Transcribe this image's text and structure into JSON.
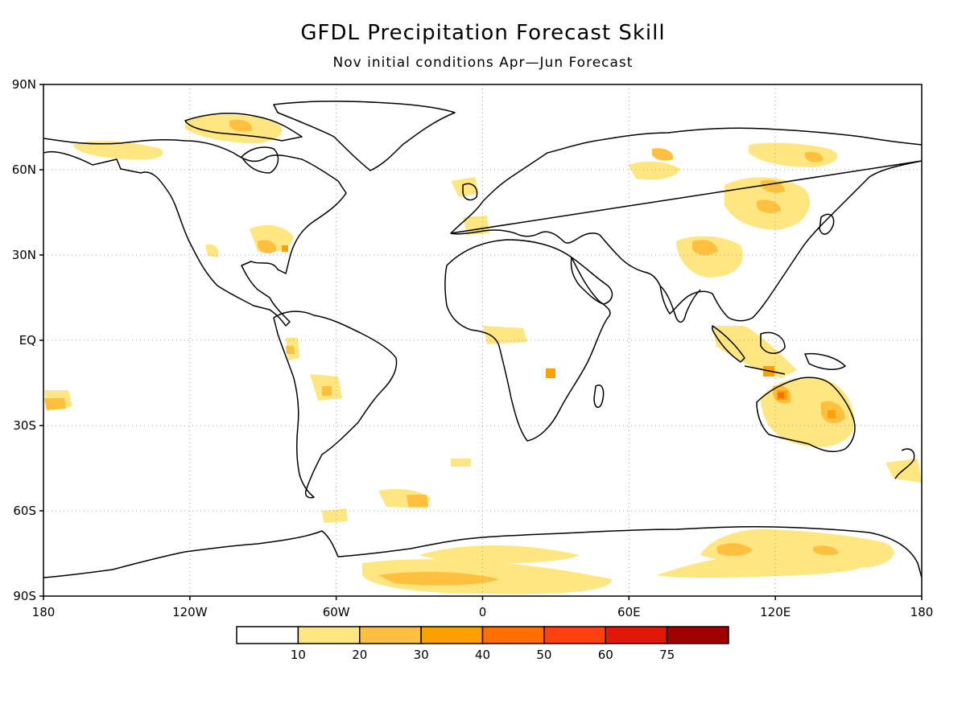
{
  "title": "GFDL Precipitation Forecast Skill",
  "subtitle": "Nov initial conditions   Apr—Jun Forecast",
  "lat_labels": [
    "90N",
    "60N",
    "30N",
    "EQ",
    "30S",
    "60S",
    "90S"
  ],
  "lat_values": [
    90,
    60,
    30,
    0,
    -30,
    -60,
    -90
  ],
  "lon_labels": [
    "180",
    "120W",
    "60W",
    "0",
    "60E",
    "120E",
    "180"
  ],
  "lon_values": [
    -180,
    -120,
    -60,
    0,
    60,
    120,
    180
  ],
  "legend": {
    "colors": [
      "#ffffff",
      "#ffe680",
      "#ffc040",
      "#ffa000",
      "#ff7000",
      "#ff4010",
      "#e01808",
      "#a00000"
    ],
    "labels": [
      "10",
      "20",
      "30",
      "40",
      "50",
      "60",
      "75"
    ]
  },
  "colors": {
    "coast": "#000000",
    "grid": "#a0a0a0",
    "frame": "#000000"
  }
}
